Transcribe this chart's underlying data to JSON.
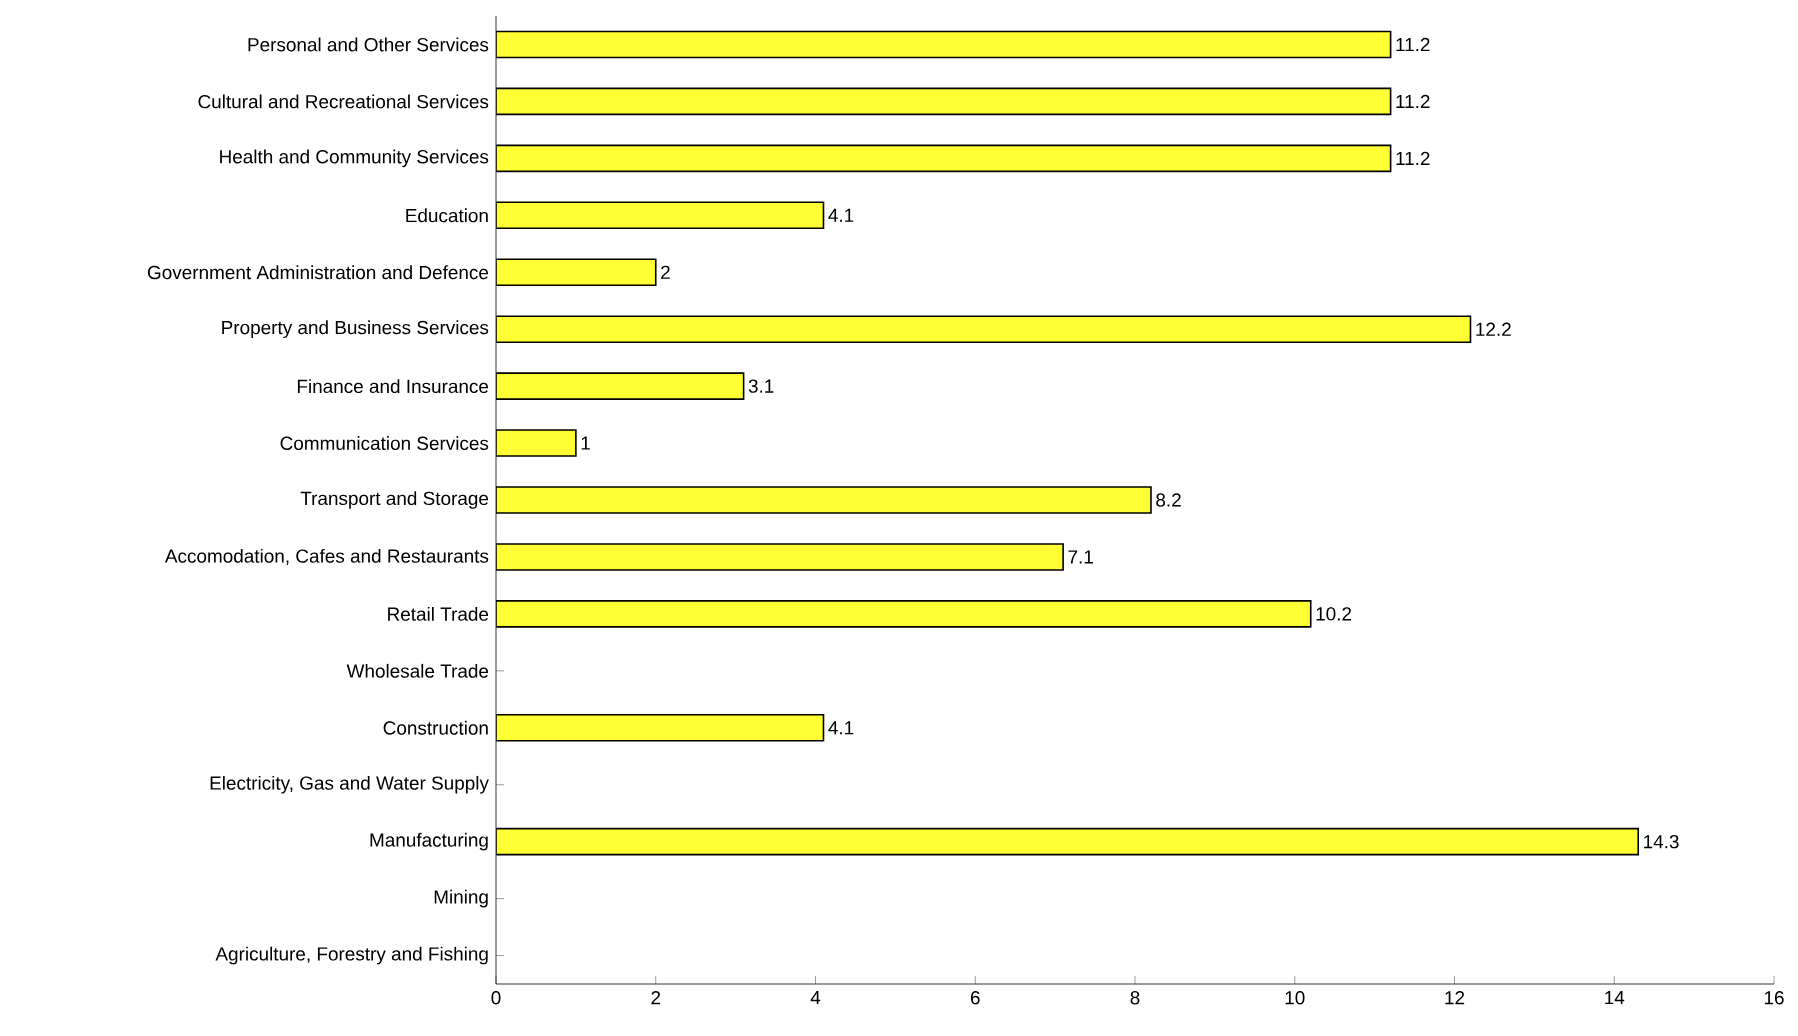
{
  "chart_data": {
    "type": "bar",
    "orientation": "horizontal",
    "categories": [
      "Personal and Other Services",
      "Cultural and Recreational Services",
      "Health and Community Services",
      "Education",
      "Government Administration and Defence",
      "Property and Business Services",
      "Finance and Insurance",
      "Communication Services",
      "Transport and Storage",
      "Accomodation, Cafes and Restaurants",
      "Retail Trade",
      "Wholesale Trade",
      "Construction",
      "Electricity, Gas and Water Supply",
      "Manufacturing",
      "Mining",
      "Agriculture, Forestry and Fishing"
    ],
    "values": [
      11.2,
      11.2,
      11.2,
      4.1,
      2,
      12.2,
      3.1,
      1,
      8.2,
      7.1,
      10.2,
      null,
      4.1,
      null,
      14.3,
      null,
      null
    ],
    "color": "#ffff33",
    "xlim": [
      0,
      16
    ],
    "xticks": [
      0,
      2,
      4,
      6,
      8,
      10,
      12,
      14,
      16
    ],
    "data_labels": true
  }
}
